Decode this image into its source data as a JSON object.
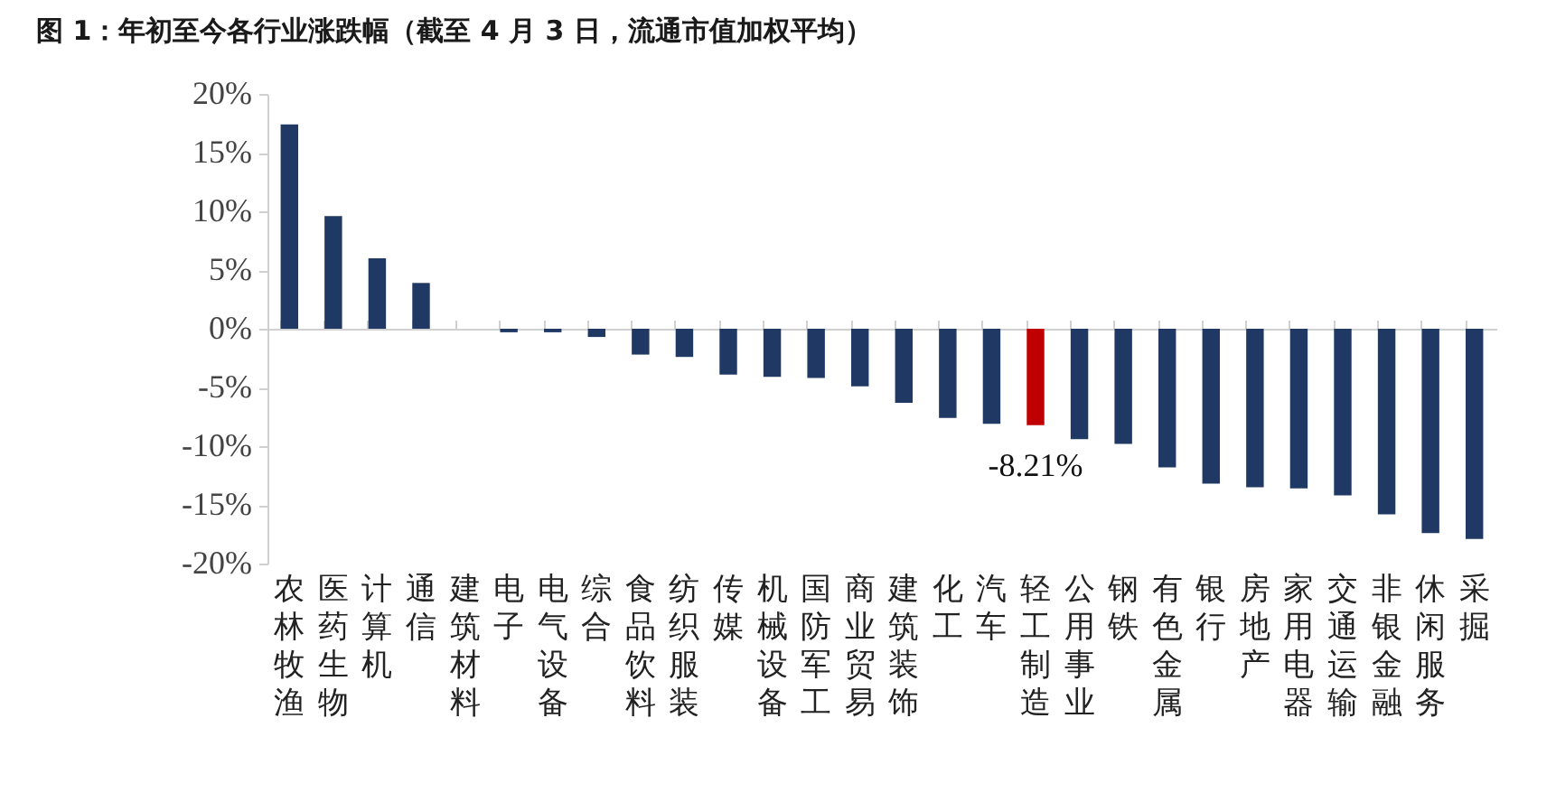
{
  "chart_data": {
    "type": "bar",
    "title": "图 1：年初至今各行业涨跌幅（截至 4 月 3 日，流通市值加权平均）",
    "categories": [
      "农林牧渔",
      "医药生物",
      "计算机",
      "通信",
      "建筑材料",
      "电子",
      "电气设备",
      "综合",
      "食品饮料",
      "纺织服装",
      "传媒",
      "机械设备",
      "国防军工",
      "商业贸易",
      "建筑装饰",
      "化工",
      "汽车",
      "轻工制造",
      "公用事业",
      "钢铁",
      "有色金属",
      "银行",
      "房地产",
      "家用电器",
      "交通运输",
      "非银金融",
      "休闲服务",
      "采掘"
    ],
    "values": [
      17.4,
      9.6,
      6.0,
      3.9,
      0.0,
      -0.3,
      -0.3,
      -0.7,
      -2.2,
      -2.4,
      -3.9,
      -4.1,
      -4.2,
      -4.9,
      -6.3,
      -7.6,
      -8.1,
      -8.21,
      -9.4,
      -9.8,
      -11.8,
      -13.2,
      -13.5,
      -13.6,
      -14.2,
      -15.8,
      -17.4,
      -17.9
    ],
    "colors": [
      "#1f3864",
      "#1f3864",
      "#1f3864",
      "#1f3864",
      "#1f3864",
      "#1f3864",
      "#1f3864",
      "#1f3864",
      "#1f3864",
      "#1f3864",
      "#1f3864",
      "#1f3864",
      "#1f3864",
      "#1f3864",
      "#1f3864",
      "#1f3864",
      "#1f3864",
      "#c00000",
      "#1f3864",
      "#1f3864",
      "#1f3864",
      "#1f3864",
      "#1f3864",
      "#1f3864",
      "#1f3864",
      "#1f3864",
      "#1f3864",
      "#1f3864"
    ],
    "value_labels": [
      null,
      null,
      null,
      null,
      null,
      null,
      null,
      null,
      null,
      null,
      null,
      null,
      null,
      null,
      null,
      null,
      null,
      "-8.21%",
      null,
      null,
      null,
      null,
      null,
      null,
      null,
      null,
      null,
      null
    ],
    "ylim": [
      -20,
      20
    ],
    "yticks": [
      {
        "value": -20,
        "label": "-20%"
      },
      {
        "value": -15,
        "label": "-15%"
      },
      {
        "value": -10,
        "label": "-10%"
      },
      {
        "value": -5,
        "label": "-5%"
      },
      {
        "value": 0,
        "label": "0%"
      },
      {
        "value": 5,
        "label": "5%"
      },
      {
        "value": 10,
        "label": "10%"
      },
      {
        "value": 15,
        "label": "15%"
      },
      {
        "value": 20,
        "label": "20%"
      }
    ]
  }
}
